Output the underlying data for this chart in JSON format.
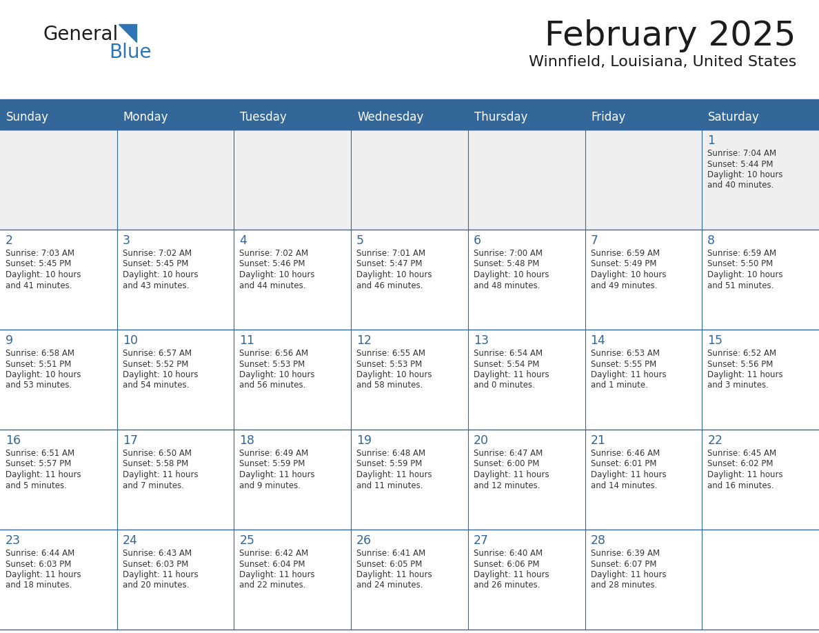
{
  "title": "February 2025",
  "subtitle": "Winnfield, Louisiana, United States",
  "days_of_week": [
    "Sunday",
    "Monday",
    "Tuesday",
    "Wednesday",
    "Thursday",
    "Friday",
    "Saturday"
  ],
  "header_bg": "#336699",
  "header_text": "#FFFFFF",
  "cell_bg_week1": "#EFEFEF",
  "cell_bg_normal": "#FFFFFF",
  "cell_border": "#336699",
  "day_num_color": "#336699",
  "text_color": "#333333",
  "calendar_data": [
    [
      null,
      null,
      null,
      null,
      null,
      null,
      {
        "day": 1,
        "sunrise": "7:04 AM",
        "sunset": "5:44 PM",
        "daylight_line1": "Daylight: 10 hours",
        "daylight_line2": "and 40 minutes."
      }
    ],
    [
      {
        "day": 2,
        "sunrise": "7:03 AM",
        "sunset": "5:45 PM",
        "daylight_line1": "Daylight: 10 hours",
        "daylight_line2": "and 41 minutes."
      },
      {
        "day": 3,
        "sunrise": "7:02 AM",
        "sunset": "5:45 PM",
        "daylight_line1": "Daylight: 10 hours",
        "daylight_line2": "and 43 minutes."
      },
      {
        "day": 4,
        "sunrise": "7:02 AM",
        "sunset": "5:46 PM",
        "daylight_line1": "Daylight: 10 hours",
        "daylight_line2": "and 44 minutes."
      },
      {
        "day": 5,
        "sunrise": "7:01 AM",
        "sunset": "5:47 PM",
        "daylight_line1": "Daylight: 10 hours",
        "daylight_line2": "and 46 minutes."
      },
      {
        "day": 6,
        "sunrise": "7:00 AM",
        "sunset": "5:48 PM",
        "daylight_line1": "Daylight: 10 hours",
        "daylight_line2": "and 48 minutes."
      },
      {
        "day": 7,
        "sunrise": "6:59 AM",
        "sunset": "5:49 PM",
        "daylight_line1": "Daylight: 10 hours",
        "daylight_line2": "and 49 minutes."
      },
      {
        "day": 8,
        "sunrise": "6:59 AM",
        "sunset": "5:50 PM",
        "daylight_line1": "Daylight: 10 hours",
        "daylight_line2": "and 51 minutes."
      }
    ],
    [
      {
        "day": 9,
        "sunrise": "6:58 AM",
        "sunset": "5:51 PM",
        "daylight_line1": "Daylight: 10 hours",
        "daylight_line2": "and 53 minutes."
      },
      {
        "day": 10,
        "sunrise": "6:57 AM",
        "sunset": "5:52 PM",
        "daylight_line1": "Daylight: 10 hours",
        "daylight_line2": "and 54 minutes."
      },
      {
        "day": 11,
        "sunrise": "6:56 AM",
        "sunset": "5:53 PM",
        "daylight_line1": "Daylight: 10 hours",
        "daylight_line2": "and 56 minutes."
      },
      {
        "day": 12,
        "sunrise": "6:55 AM",
        "sunset": "5:53 PM",
        "daylight_line1": "Daylight: 10 hours",
        "daylight_line2": "and 58 minutes."
      },
      {
        "day": 13,
        "sunrise": "6:54 AM",
        "sunset": "5:54 PM",
        "daylight_line1": "Daylight: 11 hours",
        "daylight_line2": "and 0 minutes."
      },
      {
        "day": 14,
        "sunrise": "6:53 AM",
        "sunset": "5:55 PM",
        "daylight_line1": "Daylight: 11 hours",
        "daylight_line2": "and 1 minute."
      },
      {
        "day": 15,
        "sunrise": "6:52 AM",
        "sunset": "5:56 PM",
        "daylight_line1": "Daylight: 11 hours",
        "daylight_line2": "and 3 minutes."
      }
    ],
    [
      {
        "day": 16,
        "sunrise": "6:51 AM",
        "sunset": "5:57 PM",
        "daylight_line1": "Daylight: 11 hours",
        "daylight_line2": "and 5 minutes."
      },
      {
        "day": 17,
        "sunrise": "6:50 AM",
        "sunset": "5:58 PM",
        "daylight_line1": "Daylight: 11 hours",
        "daylight_line2": "and 7 minutes."
      },
      {
        "day": 18,
        "sunrise": "6:49 AM",
        "sunset": "5:59 PM",
        "daylight_line1": "Daylight: 11 hours",
        "daylight_line2": "and 9 minutes."
      },
      {
        "day": 19,
        "sunrise": "6:48 AM",
        "sunset": "5:59 PM",
        "daylight_line1": "Daylight: 11 hours",
        "daylight_line2": "and 11 minutes."
      },
      {
        "day": 20,
        "sunrise": "6:47 AM",
        "sunset": "6:00 PM",
        "daylight_line1": "Daylight: 11 hours",
        "daylight_line2": "and 12 minutes."
      },
      {
        "day": 21,
        "sunrise": "6:46 AM",
        "sunset": "6:01 PM",
        "daylight_line1": "Daylight: 11 hours",
        "daylight_line2": "and 14 minutes."
      },
      {
        "day": 22,
        "sunrise": "6:45 AM",
        "sunset": "6:02 PM",
        "daylight_line1": "Daylight: 11 hours",
        "daylight_line2": "and 16 minutes."
      }
    ],
    [
      {
        "day": 23,
        "sunrise": "6:44 AM",
        "sunset": "6:03 PM",
        "daylight_line1": "Daylight: 11 hours",
        "daylight_line2": "and 18 minutes."
      },
      {
        "day": 24,
        "sunrise": "6:43 AM",
        "sunset": "6:03 PM",
        "daylight_line1": "Daylight: 11 hours",
        "daylight_line2": "and 20 minutes."
      },
      {
        "day": 25,
        "sunrise": "6:42 AM",
        "sunset": "6:04 PM",
        "daylight_line1": "Daylight: 11 hours",
        "daylight_line2": "and 22 minutes."
      },
      {
        "day": 26,
        "sunrise": "6:41 AM",
        "sunset": "6:05 PM",
        "daylight_line1": "Daylight: 11 hours",
        "daylight_line2": "and 24 minutes."
      },
      {
        "day": 27,
        "sunrise": "6:40 AM",
        "sunset": "6:06 PM",
        "daylight_line1": "Daylight: 11 hours",
        "daylight_line2": "and 26 minutes."
      },
      {
        "day": 28,
        "sunrise": "6:39 AM",
        "sunset": "6:07 PM",
        "daylight_line1": "Daylight: 11 hours",
        "daylight_line2": "and 28 minutes."
      },
      null
    ]
  ]
}
